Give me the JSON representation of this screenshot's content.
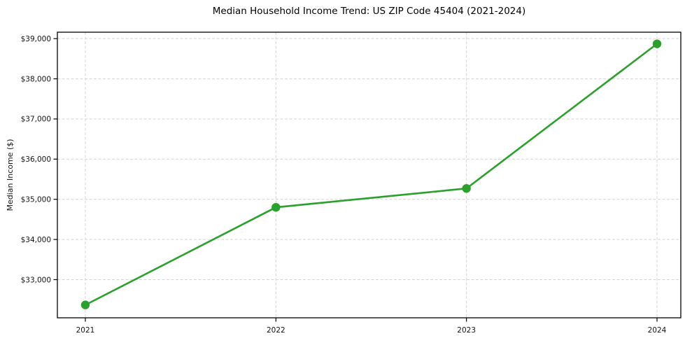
{
  "figure": {
    "title": "Median Household Income Trend: US ZIP Code 45404 (2021-2024)"
  },
  "chart_data": {
    "type": "line",
    "title": "Median Household Income Trend: US ZIP Code 45404 (2021-2024)",
    "categories": [
      "2021",
      "2022",
      "2023",
      "2024"
    ],
    "series": [
      {
        "name": "Median Household Income",
        "values": [
          32370,
          34800,
          35270,
          38870
        ]
      }
    ],
    "xlabel": "",
    "ylabel": "Median Income ($)",
    "ylim": [
      32050,
      39160
    ],
    "yticks": {
      "values": [
        33000,
        34000,
        35000,
        36000,
        37000,
        38000,
        39000
      ],
      "labels": [
        "$33,000",
        "$34,000",
        "$35,000",
        "$36,000",
        "$37,000",
        "$38,000",
        "$39,000"
      ]
    },
    "grid": true,
    "grid_style": "dashed",
    "legend_position": "none",
    "colors": {
      "line": "#2ca02c",
      "marker": "#2ca02c",
      "grid": "#d4d4d4",
      "spine": "#000000",
      "text": "#111111",
      "background": "#ffffff"
    },
    "marker": "circle",
    "line_width": 2.6,
    "marker_radius": 6.2
  }
}
